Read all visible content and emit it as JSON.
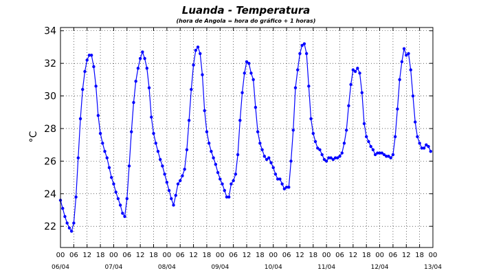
{
  "chart_data": {
    "type": "line",
    "title": "Luanda - Temperatura",
    "subtitle": "(hora de Angola = hora do gráfico + 1 horas)",
    "ylabel": "°C",
    "xlabel": "",
    "ylim": [
      20.7,
      34.2
    ],
    "xlim": [
      0,
      168
    ],
    "yticks": [
      22,
      24,
      26,
      28,
      30,
      32,
      34
    ],
    "xtick_hour_labels": [
      "00",
      "06",
      "12",
      "18",
      "00",
      "06",
      "12",
      "18",
      "00",
      "06",
      "12",
      "18",
      "00",
      "06",
      "12",
      "18",
      "00",
      "06",
      "12",
      "18",
      "00",
      "06",
      "12",
      "18",
      "00",
      "06",
      "12",
      "18",
      "00"
    ],
    "date_labels": [
      "06/04",
      "07/04",
      "08/04",
      "09/04",
      "10/04",
      "11/04",
      "12/04",
      "13/04"
    ],
    "grid": true,
    "line_color": "#0000ff",
    "series": [
      {
        "values": [
          [
            0,
            23.6
          ],
          [
            1,
            23.1
          ],
          [
            2,
            22.6
          ],
          [
            3,
            22.2
          ],
          [
            4,
            21.9
          ],
          [
            5,
            21.7
          ],
          [
            6,
            22.2
          ],
          [
            7,
            23.8
          ],
          [
            8,
            26.2
          ],
          [
            9,
            28.6
          ],
          [
            10,
            30.4
          ],
          [
            11,
            31.5
          ],
          [
            12,
            32.2
          ],
          [
            13,
            32.5
          ],
          [
            14,
            32.5
          ],
          [
            15,
            31.8
          ],
          [
            16,
            30.6
          ],
          [
            17,
            28.8
          ],
          [
            18,
            27.7
          ],
          [
            19,
            27.1
          ],
          [
            20,
            26.6
          ],
          [
            21,
            26.2
          ],
          [
            22,
            25.6
          ],
          [
            23,
            25.0
          ],
          [
            24,
            24.6
          ],
          [
            25,
            24.1
          ],
          [
            26,
            23.7
          ],
          [
            27,
            23.3
          ],
          [
            28,
            22.8
          ],
          [
            29,
            22.6
          ],
          [
            30,
            23.7
          ],
          [
            31,
            25.7
          ],
          [
            32,
            27.8
          ],
          [
            33,
            29.6
          ],
          [
            34,
            30.9
          ],
          [
            35,
            31.7
          ],
          [
            36,
            32.3
          ],
          [
            37,
            32.7
          ],
          [
            38,
            32.3
          ],
          [
            39,
            31.7
          ],
          [
            40,
            30.5
          ],
          [
            41,
            28.7
          ],
          [
            42,
            27.7
          ],
          [
            43,
            27.1
          ],
          [
            44,
            26.6
          ],
          [
            45,
            26.1
          ],
          [
            46,
            25.7
          ],
          [
            47,
            25.2
          ],
          [
            48,
            24.7
          ],
          [
            49,
            24.2
          ],
          [
            50,
            23.7
          ],
          [
            51,
            23.3
          ],
          [
            52,
            23.9
          ],
          [
            53,
            24.6
          ],
          [
            54,
            24.8
          ],
          [
            55,
            25.1
          ],
          [
            56,
            25.5
          ],
          [
            57,
            26.7
          ],
          [
            58,
            28.5
          ],
          [
            59,
            30.4
          ],
          [
            60,
            31.9
          ],
          [
            61,
            32.8
          ],
          [
            62,
            33.0
          ],
          [
            63,
            32.6
          ],
          [
            64,
            31.3
          ],
          [
            65,
            29.1
          ],
          [
            66,
            27.8
          ],
          [
            67,
            27.1
          ],
          [
            68,
            26.6
          ],
          [
            69,
            26.2
          ],
          [
            70,
            25.8
          ],
          [
            71,
            25.3
          ],
          [
            72,
            24.9
          ],
          [
            73,
            24.6
          ],
          [
            74,
            24.2
          ],
          [
            75,
            23.8
          ],
          [
            76,
            23.8
          ],
          [
            77,
            24.6
          ],
          [
            78,
            24.8
          ],
          [
            79,
            25.2
          ],
          [
            80,
            26.4
          ],
          [
            81,
            28.5
          ],
          [
            82,
            30.2
          ],
          [
            83,
            31.4
          ],
          [
            84,
            32.1
          ],
          [
            85,
            32.0
          ],
          [
            86,
            31.4
          ],
          [
            87,
            31.0
          ],
          [
            88,
            29.3
          ],
          [
            89,
            27.8
          ],
          [
            90,
            27.1
          ],
          [
            91,
            26.7
          ],
          [
            92,
            26.3
          ],
          [
            93,
            26.1
          ],
          [
            94,
            26.2
          ],
          [
            95,
            25.9
          ],
          [
            96,
            25.6
          ],
          [
            97,
            25.2
          ],
          [
            98,
            24.9
          ],
          [
            99,
            24.9
          ],
          [
            100,
            24.6
          ],
          [
            101,
            24.3
          ],
          [
            102,
            24.4
          ],
          [
            103,
            24.4
          ],
          [
            104,
            26.0
          ],
          [
            105,
            27.9
          ],
          [
            106,
            30.5
          ],
          [
            107,
            31.6
          ],
          [
            108,
            32.6
          ],
          [
            109,
            33.1
          ],
          [
            110,
            33.2
          ],
          [
            111,
            32.6
          ],
          [
            112,
            30.6
          ],
          [
            113,
            28.6
          ],
          [
            114,
            27.7
          ],
          [
            115,
            27.2
          ],
          [
            116,
            26.8
          ],
          [
            117,
            26.7
          ],
          [
            118,
            26.4
          ],
          [
            119,
            26.1
          ],
          [
            120,
            26.0
          ],
          [
            121,
            26.2
          ],
          [
            122,
            26.2
          ],
          [
            123,
            26.1
          ],
          [
            124,
            26.2
          ],
          [
            125,
            26.2
          ],
          [
            126,
            26.3
          ],
          [
            127,
            26.5
          ],
          [
            128,
            27.1
          ],
          [
            129,
            27.9
          ],
          [
            130,
            29.4
          ],
          [
            131,
            30.7
          ],
          [
            132,
            31.6
          ],
          [
            133,
            31.5
          ],
          [
            134,
            31.7
          ],
          [
            135,
            31.4
          ],
          [
            136,
            30.2
          ],
          [
            137,
            28.3
          ],
          [
            138,
            27.5
          ],
          [
            139,
            27.2
          ],
          [
            140,
            26.9
          ],
          [
            141,
            26.7
          ],
          [
            142,
            26.4
          ],
          [
            143,
            26.5
          ],
          [
            144,
            26.5
          ],
          [
            145,
            26.5
          ],
          [
            146,
            26.4
          ],
          [
            147,
            26.3
          ],
          [
            148,
            26.3
          ],
          [
            149,
            26.2
          ],
          [
            150,
            26.4
          ],
          [
            151,
            27.5
          ],
          [
            152,
            29.2
          ],
          [
            153,
            31.0
          ],
          [
            154,
            32.1
          ],
          [
            155,
            32.9
          ],
          [
            156,
            32.5
          ],
          [
            157,
            32.6
          ],
          [
            158,
            31.6
          ],
          [
            159,
            30.0
          ],
          [
            160,
            28.4
          ],
          [
            161,
            27.5
          ],
          [
            162,
            27.1
          ],
          [
            163,
            26.8
          ],
          [
            164,
            26.8
          ],
          [
            165,
            27.0
          ],
          [
            166,
            26.9
          ],
          [
            167,
            26.6
          ]
        ]
      }
    ]
  }
}
